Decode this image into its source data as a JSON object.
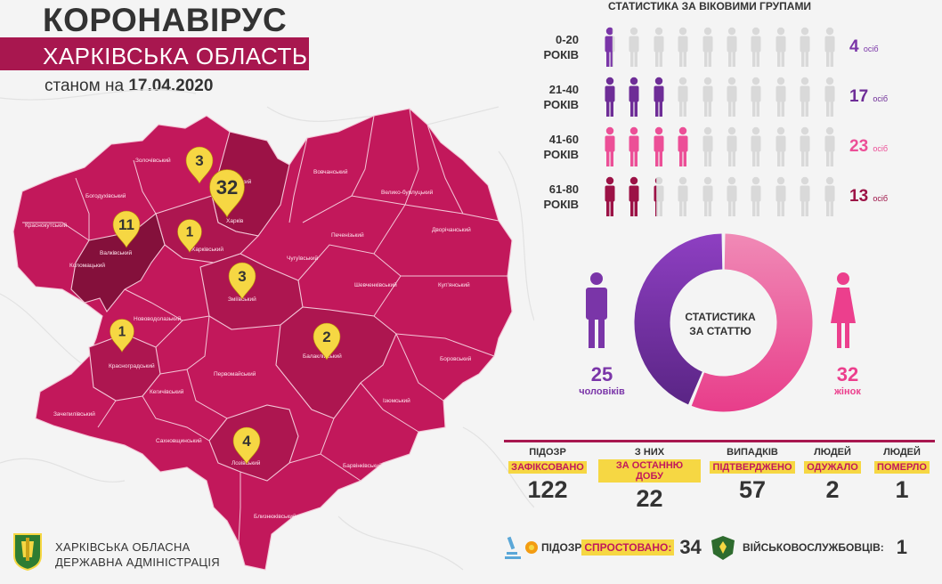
{
  "header": {
    "title": "КОРОНАВІРУС",
    "region": "ХАРКІВСЬКА ОБЛАСТЬ",
    "as_of_prefix": "станом на",
    "as_of_date": "17.04.2020"
  },
  "colors": {
    "map_fill": "#c2185b",
    "map_dark": "#9c1246",
    "map_darker": "#84103b",
    "accent": "#a8174f",
    "highlight": "#f6d743",
    "men": "#7a35a8",
    "women": "#ec3f8d",
    "age_0_20": "#7a35a8",
    "age_21_40": "#6e2d97",
    "age_41_60": "#ec4f97",
    "age_61_80": "#9c1246",
    "inactive": "#d9d9d9"
  },
  "map": {
    "districts": [
      {
        "name": "Золочівський"
      },
      {
        "name": "Дергачівський"
      },
      {
        "name": "Богодухівський"
      },
      {
        "name": "Харків"
      },
      {
        "name": "Вовчанський"
      },
      {
        "name": "Велико-бурлуцький"
      },
      {
        "name": "Краснокутський"
      },
      {
        "name": "Харківський"
      },
      {
        "name": "Печенізький"
      },
      {
        "name": "Дворічанський"
      },
      {
        "name": "Валківський"
      },
      {
        "name": "Коломацький"
      },
      {
        "name": "Чугуївський"
      },
      {
        "name": "Зміївський"
      },
      {
        "name": "Шевченківський"
      },
      {
        "name": "Куп'янський"
      },
      {
        "name": "Нововодолазький"
      },
      {
        "name": "Балаклійський"
      },
      {
        "name": "Красноградський"
      },
      {
        "name": "Первомайський"
      },
      {
        "name": "Боровський"
      },
      {
        "name": "Кегичівський"
      },
      {
        "name": "Ізюмський"
      },
      {
        "name": "Зачепилівський"
      },
      {
        "name": "Сахновщинський"
      },
      {
        "name": "Лозівський"
      },
      {
        "name": "Барвінківський"
      },
      {
        "name": "Близнюківський"
      }
    ],
    "markers": [
      {
        "value": "3",
        "area": "Дергачівський"
      },
      {
        "value": "32",
        "area": "Харків"
      },
      {
        "value": "11",
        "area": "Валківський"
      },
      {
        "value": "1",
        "area": "Харківський"
      },
      {
        "value": "3",
        "area": "Зміївський"
      },
      {
        "value": "1",
        "area": "Красноградський"
      },
      {
        "value": "2",
        "area": "Балаклійський"
      },
      {
        "value": "4",
        "area": "Лозівський"
      }
    ]
  },
  "age_stats": {
    "title": "СТАТИСТИКА ЗА ВІКОВИМИ ГРУПАМИ",
    "unit": "осіб",
    "icons_per_row": 10,
    "groups": [
      {
        "range": "0-20",
        "label": "РОКІВ",
        "count": "4",
        "share": 0.07,
        "color_key": "age_0_20"
      },
      {
        "range": "21-40",
        "label": "РОКІВ",
        "count": "17",
        "share": 0.3,
        "color_key": "age_21_40"
      },
      {
        "range": "41-60",
        "label": "РОКІВ",
        "count": "23",
        "share": 0.4,
        "color_key": "age_41_60"
      },
      {
        "range": "61-80",
        "label": "РОКІВ",
        "count": "13",
        "share": 0.23,
        "color_key": "age_61_80"
      }
    ]
  },
  "gender_stats": {
    "center_line1": "СТАТИСТИКА",
    "center_line2": "ЗА СТАТТЮ",
    "men_count": 25,
    "men_label": "чоловіків",
    "women_count": 32,
    "women_label": "жінок"
  },
  "summary": [
    {
      "top": "ПІДОЗР",
      "highlight": "ЗАФІКСОВАНО",
      "value": "122"
    },
    {
      "top": "З НИХ",
      "highlight": "ЗА ОСТАННЮ ДОБУ",
      "value": "22"
    },
    {
      "top": "ВИПАДКІВ",
      "highlight": "ПІДТВЕРДЖЕНО",
      "value": "57"
    },
    {
      "top": "ЛЮДЕЙ",
      "highlight": "ОДУЖАЛО",
      "value": "2"
    },
    {
      "top": "ЛЮДЕЙ",
      "highlight": "ПОМЕРЛО",
      "value": "1"
    }
  ],
  "bottom": {
    "refuted_label": "ПІДОЗР",
    "refuted_highlight": "СПРОСТОВАНО:",
    "refuted_value": "34",
    "military_label": "ВІЙСЬКОВОСЛУЖБОВЦІВ:",
    "military_value": "1"
  },
  "footer": {
    "org_line1": "ХАРКІВСЬКА ОБЛАСНА",
    "org_line2": "ДЕРЖАВНА АДМІНІСТРАЦІЯ"
  }
}
